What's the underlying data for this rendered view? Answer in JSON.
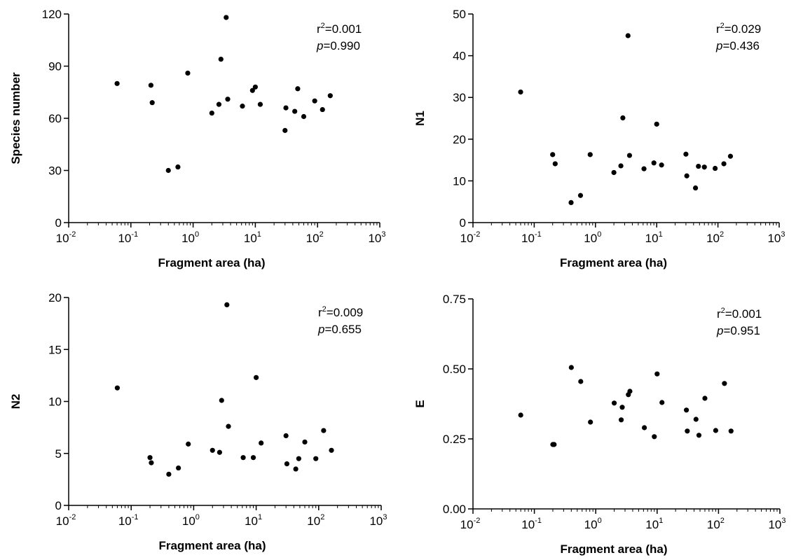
{
  "chart_data": [
    {
      "type": "scatter",
      "xlabel": "Fragment area (ha)",
      "ylabel": "Species number",
      "x_scale": "log",
      "xlim": [
        0.01,
        1000
      ],
      "ylim": [
        0,
        120
      ],
      "x_ticks": [
        "-2",
        "-1",
        "0",
        "1",
        "2",
        "3"
      ],
      "y_ticks": [
        "0",
        "30",
        "60",
        "90",
        "120"
      ],
      "stats": {
        "r2_label": "r",
        "r2_sup": "2",
        "r2_value": "=0.001",
        "p_label": "p",
        "p_value": "=0.990"
      },
      "points": [
        {
          "x": 0.06,
          "y": 80
        },
        {
          "x": 0.21,
          "y": 79
        },
        {
          "x": 0.22,
          "y": 69
        },
        {
          "x": 0.4,
          "y": 30
        },
        {
          "x": 0.57,
          "y": 32
        },
        {
          "x": 0.82,
          "y": 86
        },
        {
          "x": 2.0,
          "y": 63
        },
        {
          "x": 2.6,
          "y": 68
        },
        {
          "x": 2.8,
          "y": 94
        },
        {
          "x": 3.4,
          "y": 118
        },
        {
          "x": 3.6,
          "y": 71
        },
        {
          "x": 6.2,
          "y": 67
        },
        {
          "x": 9.0,
          "y": 76
        },
        {
          "x": 10.0,
          "y": 78
        },
        {
          "x": 12.0,
          "y": 68
        },
        {
          "x": 30,
          "y": 53
        },
        {
          "x": 31,
          "y": 66
        },
        {
          "x": 43,
          "y": 64
        },
        {
          "x": 48,
          "y": 77
        },
        {
          "x": 60,
          "y": 61
        },
        {
          "x": 90,
          "y": 70
        },
        {
          "x": 120,
          "y": 65
        },
        {
          "x": 160,
          "y": 73
        }
      ]
    },
    {
      "type": "scatter",
      "xlabel": "Fragment area (ha)",
      "ylabel": "N1",
      "x_scale": "log",
      "xlim": [
        0.01,
        1000
      ],
      "ylim": [
        0,
        50
      ],
      "x_ticks": [
        "-2",
        "-1",
        "0",
        "1",
        "2",
        "3"
      ],
      "y_ticks": [
        "0",
        "10",
        "20",
        "30",
        "40",
        "50"
      ],
      "stats": {
        "r2_label": "r",
        "r2_sup": "2",
        "r2_value": "=0.029",
        "p_label": "p",
        "p_value": "=0.436"
      },
      "points": [
        {
          "x": 0.06,
          "y": 31.3
        },
        {
          "x": 0.2,
          "y": 16.3
        },
        {
          "x": 0.22,
          "y": 14.1
        },
        {
          "x": 0.4,
          "y": 4.8
        },
        {
          "x": 0.57,
          "y": 6.5
        },
        {
          "x": 0.82,
          "y": 16.3
        },
        {
          "x": 2.0,
          "y": 12.0
        },
        {
          "x": 2.6,
          "y": 13.6
        },
        {
          "x": 2.8,
          "y": 25.1
        },
        {
          "x": 3.4,
          "y": 44.8
        },
        {
          "x": 3.6,
          "y": 16.1
        },
        {
          "x": 6.2,
          "y": 12.9
        },
        {
          "x": 9.0,
          "y": 14.3
        },
        {
          "x": 10.0,
          "y": 23.6
        },
        {
          "x": 12.0,
          "y": 13.8
        },
        {
          "x": 30,
          "y": 16.4
        },
        {
          "x": 31,
          "y": 11.2
        },
        {
          "x": 43,
          "y": 8.3
        },
        {
          "x": 48,
          "y": 13.5
        },
        {
          "x": 60,
          "y": 13.3
        },
        {
          "x": 90,
          "y": 13.0
        },
        {
          "x": 125,
          "y": 14.1
        },
        {
          "x": 160,
          "y": 15.9
        }
      ]
    },
    {
      "type": "scatter",
      "xlabel": "Fragment area (ha)",
      "ylabel": "N2",
      "x_scale": "log",
      "xlim": [
        0.01,
        1000
      ],
      "ylim": [
        0,
        20
      ],
      "x_ticks": [
        "-2",
        "-1",
        "0",
        "1",
        "2",
        "3"
      ],
      "y_ticks": [
        "0",
        "5",
        "10",
        "15",
        "20"
      ],
      "stats": {
        "r2_label": "r",
        "r2_sup": "2",
        "r2_value": "=0.009",
        "p_label": "p",
        "p_value": "=0.655"
      },
      "points": [
        {
          "x": 0.06,
          "y": 11.3
        },
        {
          "x": 0.2,
          "y": 4.6
        },
        {
          "x": 0.21,
          "y": 4.1
        },
        {
          "x": 0.4,
          "y": 3.0
        },
        {
          "x": 0.57,
          "y": 3.6
        },
        {
          "x": 0.82,
          "y": 5.9
        },
        {
          "x": 2.0,
          "y": 5.3
        },
        {
          "x": 2.6,
          "y": 5.1
        },
        {
          "x": 2.8,
          "y": 10.1
        },
        {
          "x": 3.4,
          "y": 19.3
        },
        {
          "x": 3.6,
          "y": 7.6
        },
        {
          "x": 6.2,
          "y": 4.6
        },
        {
          "x": 9.0,
          "y": 4.6
        },
        {
          "x": 10.0,
          "y": 12.3
        },
        {
          "x": 12.0,
          "y": 6.0
        },
        {
          "x": 30,
          "y": 6.7
        },
        {
          "x": 31,
          "y": 4.0
        },
        {
          "x": 43,
          "y": 3.5
        },
        {
          "x": 48,
          "y": 4.5
        },
        {
          "x": 60,
          "y": 6.1
        },
        {
          "x": 90,
          "y": 4.5
        },
        {
          "x": 120,
          "y": 7.2
        },
        {
          "x": 160,
          "y": 5.3
        }
      ]
    },
    {
      "type": "scatter",
      "xlabel": "Fragment area (ha)",
      "ylabel": "E",
      "x_scale": "log",
      "xlim": [
        0.01,
        1000
      ],
      "ylim": [
        0,
        0.75
      ],
      "x_ticks": [
        "-2",
        "-1",
        "0",
        "1",
        "2",
        "3"
      ],
      "y_ticks": [
        "0.00",
        "0.25",
        "0.50",
        "0.75"
      ],
      "stats": {
        "r2_label": "r",
        "r2_sup": "2",
        "r2_value": "=0.001",
        "p_label": "p",
        "p_value": "=0.951"
      },
      "points": [
        {
          "x": 0.06,
          "y": 0.335
        },
        {
          "x": 0.2,
          "y": 0.23
        },
        {
          "x": 0.21,
          "y": 0.23
        },
        {
          "x": 0.4,
          "y": 0.505
        },
        {
          "x": 0.57,
          "y": 0.455
        },
        {
          "x": 0.82,
          "y": 0.31
        },
        {
          "x": 2.0,
          "y": 0.378
        },
        {
          "x": 2.6,
          "y": 0.318
        },
        {
          "x": 2.7,
          "y": 0.363
        },
        {
          "x": 3.4,
          "y": 0.408
        },
        {
          "x": 3.6,
          "y": 0.42
        },
        {
          "x": 6.2,
          "y": 0.29
        },
        {
          "x": 9.0,
          "y": 0.258
        },
        {
          "x": 10.0,
          "y": 0.482
        },
        {
          "x": 12.0,
          "y": 0.38
        },
        {
          "x": 30,
          "y": 0.353
        },
        {
          "x": 31,
          "y": 0.278
        },
        {
          "x": 43,
          "y": 0.32
        },
        {
          "x": 48,
          "y": 0.263
        },
        {
          "x": 60,
          "y": 0.395
        },
        {
          "x": 90,
          "y": 0.28
        },
        {
          "x": 125,
          "y": 0.448
        },
        {
          "x": 160,
          "y": 0.278
        }
      ]
    }
  ]
}
